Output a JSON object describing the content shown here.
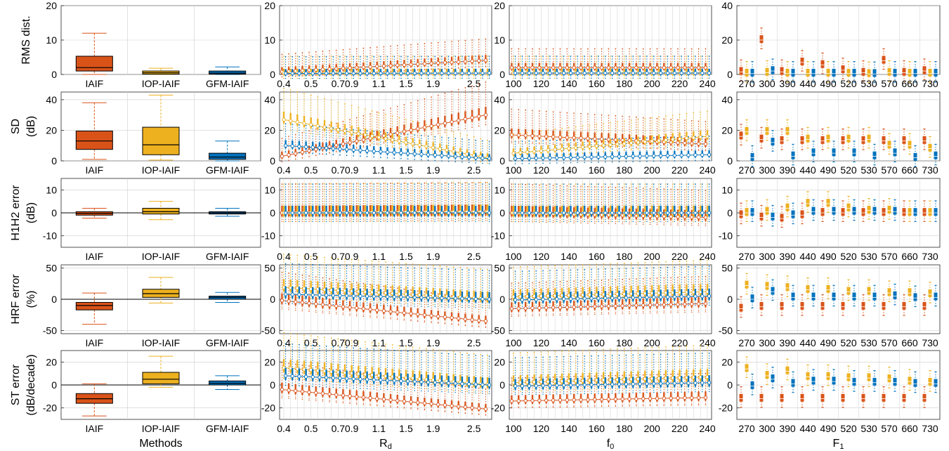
{
  "colors": {
    "IAIF": "#d95319",
    "IOP-IAIF": "#edb120",
    "GFM-IAIF": "#0072bd",
    "grid": "#cfcfcf",
    "axis": "#262626"
  },
  "columns": [
    {
      "xlabel": "Methods",
      "kind": "summary"
    },
    {
      "xlabel": "R",
      "xlabel_sub": "d",
      "kind": "Rd"
    },
    {
      "xlabel": "f",
      "xlabel_sub": "0",
      "kind": "f0"
    },
    {
      "xlabel": "F",
      "xlabel_sub": "1",
      "kind": "F1"
    }
  ],
  "rows": [
    {
      "ylabel_lines": [
        "RMS dist."
      ],
      "ticks": [
        [
          0,
          10,
          20
        ],
        [
          0,
          10,
          20
        ],
        [
          0,
          10,
          20
        ],
        [
          0,
          20,
          40
        ]
      ]
    },
    {
      "ylabel_lines": [
        "SD",
        "(dB)"
      ],
      "ticks": [
        [
          0,
          20,
          40
        ],
        [
          0,
          20,
          40
        ],
        [
          0,
          20,
          40
        ],
        [
          0,
          20,
          40
        ]
      ]
    },
    {
      "ylabel_lines": [
        "H1H2 error",
        "(dB)"
      ],
      "ticks": [
        [
          -10,
          0,
          10
        ],
        [
          -10,
          0,
          10
        ],
        [
          -10,
          0,
          10
        ],
        [
          -10,
          0,
          10
        ]
      ]
    },
    {
      "ylabel_lines": [
        "HRF error",
        "(%)"
      ],
      "ticks": [
        [
          -50,
          0,
          50
        ],
        [
          -50,
          0,
          50
        ],
        [
          -50,
          0,
          50
        ],
        [
          -50,
          0,
          50
        ]
      ]
    },
    {
      "ylabel_lines": [
        "ST error",
        "(dB/decade)"
      ],
      "ticks": [
        [
          -20,
          0,
          20
        ],
        [
          -20,
          0,
          20
        ],
        [
          -20,
          0,
          20
        ],
        [
          -20,
          0,
          20
        ]
      ]
    }
  ],
  "chart_data": {
    "type": "box",
    "methods": [
      "IAIF",
      "IOP-IAIF",
      "GFM-IAIF"
    ],
    "x_Rd": {
      "ticklabels": [
        "0.4",
        "0.5",
        "0.7",
        "0.9",
        "1.1",
        "1.5",
        "1.9",
        "2.5"
      ],
      "values": [
        0.4,
        0.45,
        0.5,
        0.55,
        0.6,
        0.65,
        0.7,
        0.75,
        0.8,
        0.85,
        0.9,
        0.95,
        1.0,
        1.05,
        1.1,
        1.2,
        1.3,
        1.4,
        1.5,
        1.6,
        1.7,
        1.8,
        1.9,
        2.0,
        2.1,
        2.2,
        2.3,
        2.4,
        2.5,
        2.6,
        2.7
      ]
    },
    "x_f0": {
      "ticklabels": [
        "100",
        "120",
        "140",
        "160",
        "180",
        "200",
        "220",
        "240"
      ],
      "values": [
        100,
        105,
        110,
        115,
        120,
        125,
        130,
        135,
        140,
        145,
        150,
        155,
        160,
        165,
        170,
        175,
        180,
        185,
        190,
        195,
        200,
        205,
        210,
        215,
        220,
        225,
        230,
        235,
        240
      ]
    },
    "x_F1": {
      "ticklabels": [
        "270",
        "300",
        "390",
        "440",
        "490",
        "520",
        "530",
        "570",
        "660",
        "730"
      ],
      "values": [
        270,
        300,
        390,
        440,
        490,
        520,
        530,
        570,
        660,
        730
      ]
    },
    "panels": [
      {
        "row": 0,
        "ylim": [
          0,
          20
        ],
        "xlim_Rd": [
          0.4,
          2.7
        ],
        "xlim_f0": [
          100,
          240
        ],
        "ylim_F1": [
          0,
          40
        ],
        "summary": [
          {
            "method": "IAIF",
            "q1": 1.0,
            "median": 2.0,
            "q3": 5.3,
            "whisker_low": 0.0,
            "whisker_high": 12.0
          },
          {
            "method": "IOP-IAIF",
            "q1": 0.1,
            "median": 0.5,
            "q3": 1.0,
            "whisker_low": 0.0,
            "whisker_high": 1.8
          },
          {
            "method": "GFM-IAIF",
            "q1": 0.1,
            "median": 0.4,
            "q3": 1.0,
            "whisker_low": 0.0,
            "whisker_high": 2.2
          }
        ],
        "Rd_medians": {
          "IAIF": [
            0.8,
            4.1
          ],
          "IOP-IAIF": [
            0.4,
            0.4
          ],
          "GFM-IAIF": [
            0.3,
            0.4
          ]
        },
        "Rd_q3_end": {
          "IAIF": 11.0,
          "IOP-IAIF": 1.5,
          "GFM-IAIF": 1.2
        },
        "f0_medians": {
          "IAIF": [
            2.0,
            2.0
          ],
          "IOP-IAIF": [
            0.4,
            0.4
          ],
          "GFM-IAIF": [
            0.4,
            0.4
          ]
        },
        "F1_medians": {
          "IAIF": [
            1.5,
            20.0,
            1.5,
            7.0,
            5.5,
            2.5,
            1.0,
            8.0,
            1.0,
            2.0
          ],
          "IOP-IAIF": [
            0.5,
            1.0,
            0.5,
            0.5,
            0.5,
            0.5,
            0.3,
            1.0,
            0.5,
            0.5
          ],
          "GFM-IAIF": [
            0.5,
            2.0,
            0.5,
            0.5,
            0.5,
            0.5,
            0.3,
            0.5,
            0.5,
            0.5
          ]
        }
      },
      {
        "row": 1,
        "ylim": [
          0,
          45
        ],
        "summary": [
          {
            "method": "IAIF",
            "q1": 7.5,
            "median": 13.0,
            "q3": 19.5,
            "whisker_low": 1.0,
            "whisker_high": 38.0
          },
          {
            "method": "IOP-IAIF",
            "q1": 4.0,
            "median": 10.5,
            "q3": 22.0,
            "whisker_low": 0.5,
            "whisker_high": 43.0
          },
          {
            "method": "GFM-IAIF",
            "q1": 1.0,
            "median": 2.5,
            "q3": 5.0,
            "whisker_low": 0.0,
            "whisker_high": 13.0
          }
        ],
        "Rd_medians": {
          "IAIF": [
            3.0,
            30.0
          ],
          "IOP-IAIF": [
            27.0,
            2.0
          ],
          "GFM-IAIF": [
            10.0,
            1.5
          ]
        },
        "f0_medians": {
          "IAIF": [
            17.0,
            11.0
          ],
          "IOP-IAIF": [
            5.0,
            16.0
          ],
          "GFM-IAIF": [
            1.5,
            4.0
          ]
        },
        "F1_medians": {
          "IAIF": [
            16.0,
            14.0,
            13.0,
            13.0,
            13.0,
            13.0,
            13.0,
            13.0,
            13.0,
            13.0
          ],
          "IOP-IAIF": [
            19.0,
            19.0,
            19.0,
            14.0,
            14.0,
            14.0,
            14.0,
            10.0,
            10.0,
            8.0
          ],
          "GFM-IAIF": [
            2.0,
            12.0,
            3.0,
            5.0,
            5.0,
            5.0,
            3.0,
            5.0,
            2.0,
            3.0
          ]
        }
      },
      {
        "row": 2,
        "ylim": [
          -15,
          15
        ],
        "summary": [
          {
            "method": "IAIF",
            "q1": -1.0,
            "median": -0.2,
            "q3": 0.5,
            "whisker_low": -2.3,
            "whisker_high": 2.0
          },
          {
            "method": "IOP-IAIF",
            "q1": -0.5,
            "median": 0.5,
            "q3": 2.0,
            "whisker_low": -3.0,
            "whisker_high": 5.0
          },
          {
            "method": "GFM-IAIF",
            "q1": -0.5,
            "median": 0.0,
            "q3": 0.5,
            "whisker_low": -1.5,
            "whisker_high": 2.0
          }
        ],
        "Rd_medians": {
          "IAIF": [
            0.0,
            0.5
          ],
          "IOP-IAIF": [
            0.0,
            0.5
          ],
          "GFM-IAIF": [
            0.0,
            0.0
          ]
        },
        "f0_medians": {
          "IAIF": [
            0.0,
            -2.0
          ],
          "IOP-IAIF": [
            0.0,
            0.0
          ],
          "GFM-IAIF": [
            0.0,
            0.0
          ]
        },
        "F1_medians": {
          "IAIF": [
            -1.0,
            -2.0,
            -2.5,
            -1.0,
            0.0,
            0.0,
            0.0,
            0.0,
            0.0,
            0.0
          ],
          "IOP-IAIF": [
            0.0,
            0.5,
            2.0,
            4.0,
            4.0,
            2.0,
            1.0,
            1.0,
            0.0,
            0.0
          ],
          "GFM-IAIF": [
            0.0,
            -2.0,
            -1.0,
            0.5,
            0.5,
            0.5,
            0.5,
            0.5,
            0.0,
            0.0
          ]
        }
      },
      {
        "row": 3,
        "ylim": [
          -55,
          55
        ],
        "summary": [
          {
            "method": "IAIF",
            "q1": -17.0,
            "median": -10.0,
            "q3": -5.0,
            "whisker_low": -40.0,
            "whisker_high": 10.0
          },
          {
            "method": "IOP-IAIF",
            "q1": 3.0,
            "median": 9.0,
            "q3": 16.0,
            "whisker_low": -6.0,
            "whisker_high": 35.0
          },
          {
            "method": "GFM-IAIF",
            "q1": 0.0,
            "median": 3.0,
            "q3": 5.0,
            "whisker_low": -5.0,
            "whisker_high": 11.0
          }
        ],
        "Rd_medians": {
          "IAIF": [
            -2.0,
            -35.0
          ],
          "IOP-IAIF": [
            19.0,
            1.0
          ],
          "GFM-IAIF": [
            8.0,
            0.0
          ]
        },
        "f0_medians": {
          "IAIF": [
            -15.0,
            -7.0
          ],
          "IOP-IAIF": [
            4.0,
            12.0
          ],
          "GFM-IAIF": [
            -1.0,
            5.0
          ]
        },
        "F1_medians": {
          "IAIF": [
            -15.0,
            -12.0,
            -12.0,
            -12.0,
            -12.0,
            -12.0,
            -12.0,
            -12.0,
            -12.0,
            -12.0
          ],
          "IOP-IAIF": [
            22.0,
            20.0,
            18.0,
            15.0,
            15.0,
            12.0,
            12.0,
            10.0,
            10.0,
            8.0
          ],
          "GFM-IAIF": [
            0.0,
            12.0,
            3.0,
            3.0,
            3.0,
            3.0,
            3.0,
            5.0,
            2.0,
            3.0
          ]
        }
      },
      {
        "row": 4,
        "ylim": [
          -30,
          30
        ],
        "summary": [
          {
            "method": "IAIF",
            "q1": -16.0,
            "median": -12.0,
            "q3": -7.5,
            "whisker_low": -27.0,
            "whisker_high": 1.0
          },
          {
            "method": "IOP-IAIF",
            "q1": 1.0,
            "median": 5.0,
            "q3": 11.0,
            "whisker_low": -2.0,
            "whisker_high": 25.0
          },
          {
            "method": "GFM-IAIF",
            "q1": 0.0,
            "median": 1.5,
            "q3": 3.5,
            "whisker_low": -4.0,
            "whisker_high": 8.0
          }
        ],
        "Rd_medians": {
          "IAIF": [
            -4.0,
            -21.0
          ],
          "IOP-IAIF": [
            15.0,
            0.5
          ],
          "GFM-IAIF": [
            8.0,
            0.0
          ]
        },
        "f0_medians": {
          "IAIF": [
            -14.0,
            -11.0
          ],
          "IOP-IAIF": [
            2.0,
            7.0
          ],
          "GFM-IAIF": [
            -1.0,
            2.0
          ]
        },
        "F1_medians": {
          "IAIF": [
            -12.0,
            -12.0,
            -12.0,
            -12.0,
            -12.0,
            -12.0,
            -12.0,
            -12.0,
            -12.0,
            -12.0
          ],
          "IOP-IAIF": [
            14.0,
            8.0,
            12.0,
            7.0,
            7.0,
            6.0,
            6.0,
            5.0,
            3.0,
            2.0
          ],
          "GFM-IAIF": [
            -1.0,
            5.0,
            1.0,
            3.0,
            3.0,
            2.0,
            2.0,
            2.0,
            1.0,
            1.0
          ]
        }
      }
    ]
  }
}
